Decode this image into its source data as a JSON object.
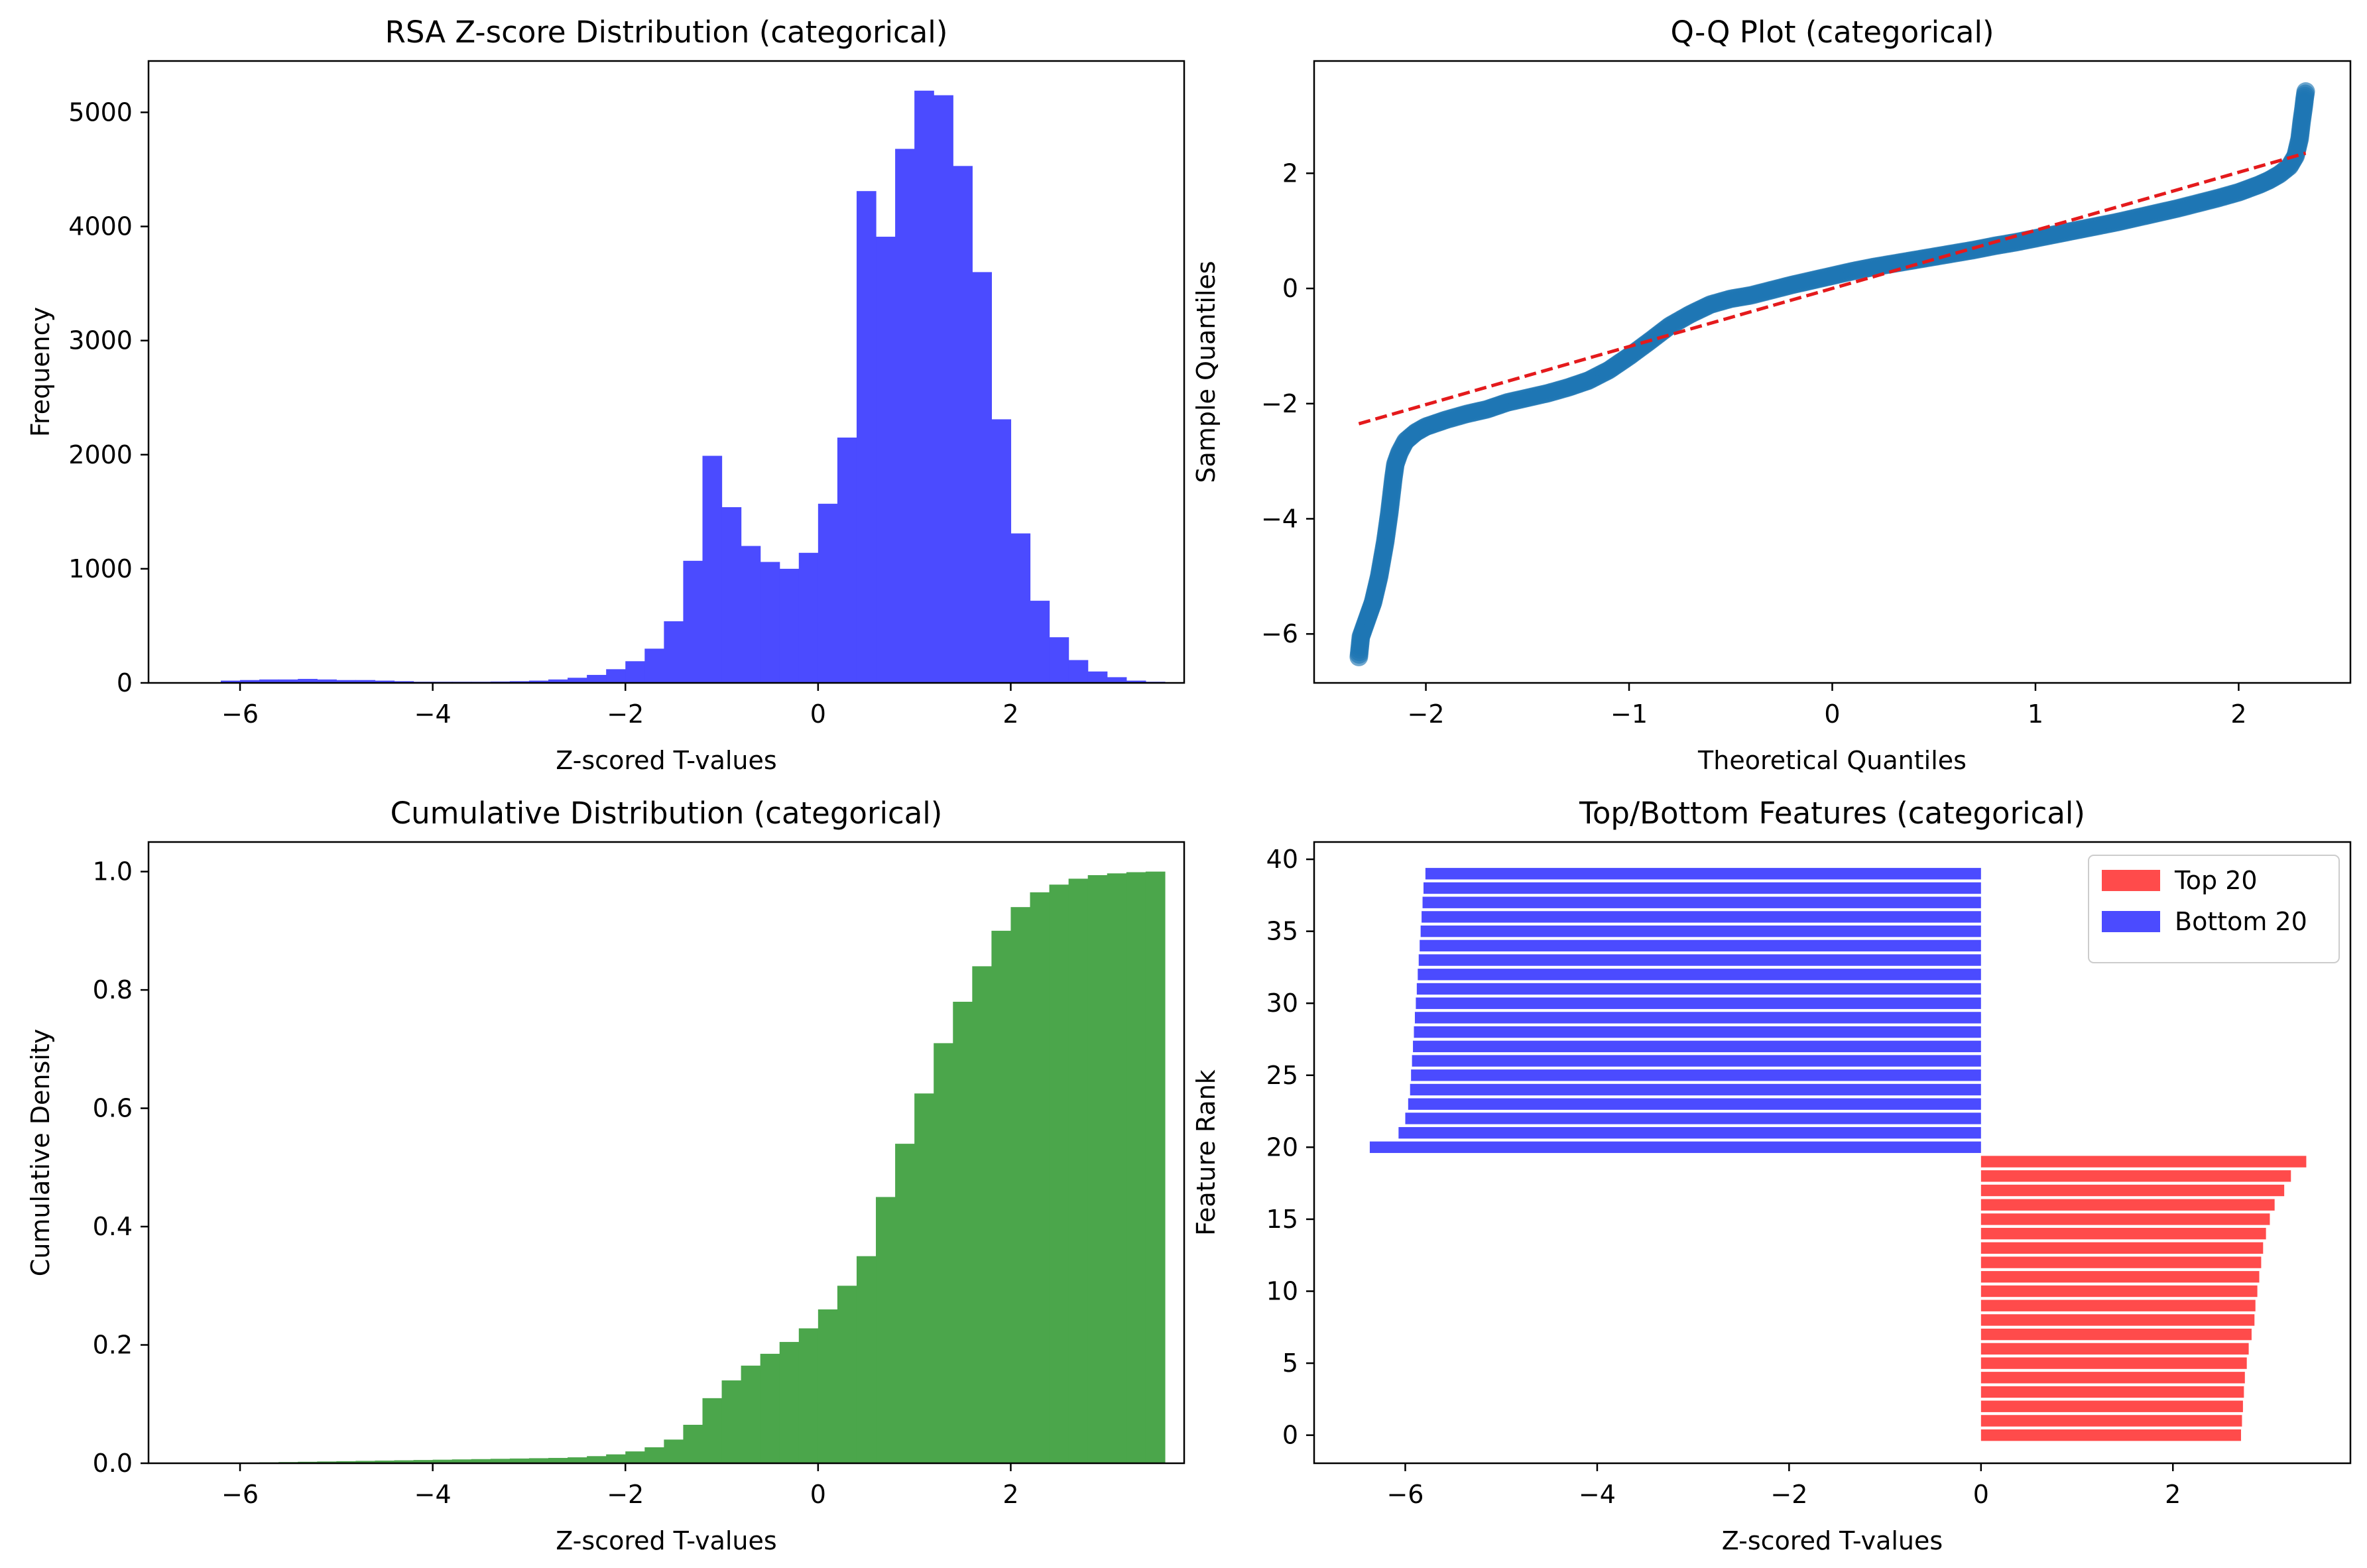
{
  "chart_data": [
    {
      "type": "histogram",
      "title": "RSA Z-score Distribution (categorical)",
      "xlabel": "Z-scored T-values",
      "ylabel": "Frequency",
      "xlim": [
        -6.95,
        3.8
      ],
      "ylim": [
        0,
        5450
      ],
      "xticks": [
        -6,
        -4,
        -2,
        0,
        2
      ],
      "xtick_labels": [
        "−6",
        "−4",
        "−2",
        "0",
        "2"
      ],
      "yticks": [
        0,
        1000,
        2000,
        3000,
        4000,
        5000
      ],
      "ytick_labels": [
        "0",
        "1000",
        "2000",
        "3000",
        "4000",
        "5000"
      ],
      "color": "#4b4bff",
      "bin_width": 0.2,
      "x_start": -6.4,
      "values": [
        5,
        20,
        25,
        30,
        30,
        35,
        30,
        25,
        25,
        20,
        15,
        10,
        10,
        10,
        10,
        12,
        15,
        20,
        30,
        45,
        70,
        120,
        190,
        300,
        540,
        1070,
        1990,
        1540,
        1200,
        1060,
        1000,
        1140,
        1570,
        2150,
        4310,
        3910,
        4680,
        5190,
        5150,
        4530,
        3600,
        2310,
        1310,
        720,
        400,
        200,
        100,
        50,
        20,
        10
      ]
    },
    {
      "type": "scatter",
      "title": "Q-Q Plot (categorical)",
      "xlabel": "Theoretical Quantiles",
      "ylabel": "Sample Quantiles",
      "xlim": [
        -2.55,
        2.55
      ],
      "ylim": [
        -6.85,
        3.95
      ],
      "xticks": [
        -2,
        -1,
        0,
        1,
        2
      ],
      "xtick_labels": [
        "−2",
        "−1",
        "0",
        "1",
        "2"
      ],
      "yticks": [
        -6,
        -4,
        -2,
        0,
        2
      ],
      "ytick_labels": [
        "−6",
        "−4",
        "−2",
        "0",
        "2"
      ],
      "color": "#1f77b4",
      "ref_line_color": "#e41a1c",
      "ref_line": {
        "x": [
          -2.33,
          2.33
        ],
        "y": [
          -2.35,
          2.35
        ]
      },
      "points": [
        [
          -2.33,
          -6.4
        ],
        [
          -2.32,
          -6.05
        ],
        [
          -2.31,
          -5.95
        ],
        [
          -2.3,
          -5.85
        ],
        [
          -2.29,
          -5.75
        ],
        [
          -2.28,
          -5.65
        ],
        [
          -2.27,
          -5.55
        ],
        [
          -2.26,
          -5.45
        ],
        [
          -2.25,
          -5.3
        ],
        [
          -2.24,
          -5.15
        ],
        [
          -2.23,
          -5.0
        ],
        [
          -2.22,
          -4.8
        ],
        [
          -2.21,
          -4.6
        ],
        [
          -2.2,
          -4.4
        ],
        [
          -2.19,
          -4.15
        ],
        [
          -2.18,
          -3.9
        ],
        [
          -2.17,
          -3.6
        ],
        [
          -2.16,
          -3.3
        ],
        [
          -2.15,
          -3.05
        ],
        [
          -2.13,
          -2.85
        ],
        [
          -2.1,
          -2.65
        ],
        [
          -2.05,
          -2.5
        ],
        [
          -2.0,
          -2.4
        ],
        [
          -1.9,
          -2.28
        ],
        [
          -1.8,
          -2.18
        ],
        [
          -1.7,
          -2.1
        ],
        [
          -1.6,
          -1.98
        ],
        [
          -1.5,
          -1.9
        ],
        [
          -1.4,
          -1.82
        ],
        [
          -1.3,
          -1.72
        ],
        [
          -1.2,
          -1.6
        ],
        [
          -1.1,
          -1.42
        ],
        [
          -1.0,
          -1.18
        ],
        [
          -0.9,
          -0.92
        ],
        [
          -0.8,
          -0.65
        ],
        [
          -0.7,
          -0.45
        ],
        [
          -0.6,
          -0.28
        ],
        [
          -0.5,
          -0.18
        ],
        [
          -0.4,
          -0.12
        ],
        [
          -0.3,
          -0.03
        ],
        [
          -0.2,
          0.06
        ],
        [
          -0.1,
          0.14
        ],
        [
          0.0,
          0.22
        ],
        [
          0.1,
          0.3
        ],
        [
          0.2,
          0.37
        ],
        [
          0.3,
          0.43
        ],
        [
          0.4,
          0.49
        ],
        [
          0.5,
          0.55
        ],
        [
          0.6,
          0.61
        ],
        [
          0.7,
          0.67
        ],
        [
          0.8,
          0.74
        ],
        [
          0.9,
          0.8
        ],
        [
          1.0,
          0.87
        ],
        [
          1.1,
          0.94
        ],
        [
          1.2,
          1.01
        ],
        [
          1.3,
          1.08
        ],
        [
          1.4,
          1.15
        ],
        [
          1.5,
          1.23
        ],
        [
          1.6,
          1.31
        ],
        [
          1.7,
          1.39
        ],
        [
          1.8,
          1.48
        ],
        [
          1.9,
          1.57
        ],
        [
          2.0,
          1.67
        ],
        [
          2.1,
          1.8
        ],
        [
          2.15,
          1.88
        ],
        [
          2.2,
          1.98
        ],
        [
          2.25,
          2.12
        ],
        [
          2.28,
          2.3
        ],
        [
          2.3,
          2.6
        ],
        [
          2.31,
          2.9
        ],
        [
          2.32,
          3.15
        ],
        [
          2.325,
          3.3
        ],
        [
          2.33,
          3.42
        ]
      ]
    },
    {
      "type": "histogram",
      "title": "Cumulative Distribution (categorical)",
      "xlabel": "Z-scored T-values",
      "ylabel": "Cumulative Density",
      "xlim": [
        -6.95,
        3.8
      ],
      "ylim": [
        0,
        1.05
      ],
      "xticks": [
        -6,
        -4,
        -2,
        0,
        2
      ],
      "xtick_labels": [
        "−6",
        "−4",
        "−2",
        "0",
        "2"
      ],
      "yticks": [
        0.0,
        0.2,
        0.4,
        0.6,
        0.8,
        1.0
      ],
      "ytick_labels": [
        "0.0",
        "0.2",
        "0.4",
        "0.6",
        "0.8",
        "1.0"
      ],
      "color": "#4ba64b",
      "bin_width": 0.2,
      "x_start": -6.4,
      "values": [
        0.0,
        0.0005,
        0.001,
        0.0015,
        0.002,
        0.0025,
        0.003,
        0.0035,
        0.004,
        0.0045,
        0.005,
        0.0055,
        0.006,
        0.0065,
        0.007,
        0.0075,
        0.008,
        0.0085,
        0.009,
        0.01,
        0.012,
        0.015,
        0.02,
        0.027,
        0.04,
        0.065,
        0.11,
        0.14,
        0.165,
        0.185,
        0.205,
        0.228,
        0.26,
        0.3,
        0.35,
        0.45,
        0.54,
        0.625,
        0.71,
        0.78,
        0.84,
        0.9,
        0.94,
        0.965,
        0.978,
        0.988,
        0.994,
        0.997,
        0.999,
        1.0
      ]
    },
    {
      "type": "bar",
      "orientation": "horizontal",
      "title": "Top/Bottom Features (categorical)",
      "xlabel": "Z-scored T-values",
      "ylabel": "Feature Rank",
      "xlim": [
        -6.95,
        3.85
      ],
      "ylim": [
        -1.95,
        41.2
      ],
      "xticks": [
        -6,
        -4,
        -2,
        0,
        2
      ],
      "xtick_labels": [
        "−6",
        "−4",
        "−2",
        "0",
        "2"
      ],
      "yticks": [
        0,
        5,
        10,
        15,
        20,
        25,
        30,
        35,
        40
      ],
      "ytick_labels": [
        "0",
        "5",
        "10",
        "15",
        "20",
        "25",
        "30",
        "35",
        "40"
      ],
      "legend": {
        "position": "top-right",
        "entries": [
          "Top 20",
          "Bottom 20"
        ]
      },
      "series": [
        {
          "name": "Top 20",
          "color": "#ff4b4b",
          "y": [
            0,
            1,
            2,
            3,
            4,
            5,
            6,
            7,
            8,
            9,
            10,
            11,
            12,
            13,
            14,
            15,
            16,
            17,
            18,
            19
          ],
          "values": [
            2.71,
            2.72,
            2.73,
            2.74,
            2.75,
            2.77,
            2.79,
            2.82,
            2.85,
            2.86,
            2.88,
            2.9,
            2.92,
            2.94,
            2.97,
            3.01,
            3.06,
            3.16,
            3.23,
            3.39
          ]
        },
        {
          "name": "Bottom 20",
          "color": "#4b4bff",
          "y": [
            20,
            21,
            22,
            23,
            24,
            25,
            26,
            27,
            28,
            29,
            30,
            31,
            32,
            33,
            34,
            35,
            36,
            37,
            38,
            39
          ],
          "values": [
            -6.37,
            -6.07,
            -6.0,
            -5.97,
            -5.95,
            -5.94,
            -5.93,
            -5.92,
            -5.91,
            -5.9,
            -5.89,
            -5.88,
            -5.87,
            -5.86,
            -5.85,
            -5.84,
            -5.83,
            -5.82,
            -5.81,
            -5.79
          ]
        }
      ]
    }
  ]
}
